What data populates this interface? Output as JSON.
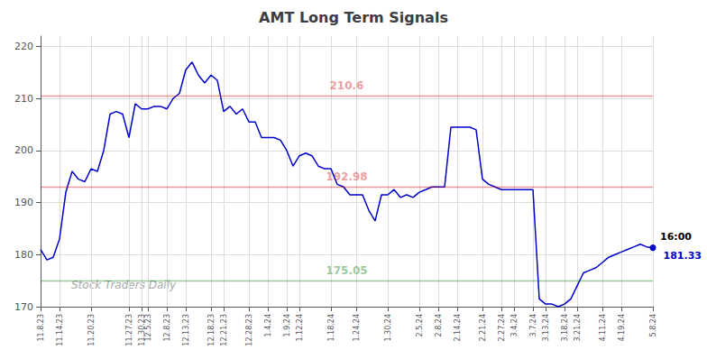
{
  "chart_data": {
    "type": "line",
    "title": "AMT Long Term Signals",
    "categories": [
      "11.8.23",
      null,
      null,
      "11.14.23",
      null,
      null,
      null,
      null,
      "11.20.23",
      null,
      null,
      null,
      null,
      null,
      "11.27.23",
      null,
      "11.30.23",
      "12.5.23",
      null,
      null,
      "12.8.23",
      null,
      null,
      "12.13.23",
      null,
      null,
      null,
      "12.18.23",
      null,
      "12.21.23",
      null,
      null,
      null,
      "12.28.23",
      null,
      null,
      "1.4.24",
      null,
      null,
      "1.9.24",
      null,
      "1.12.24",
      null,
      null,
      null,
      null,
      "1.18.24",
      null,
      null,
      null,
      "1.24.24",
      null,
      null,
      null,
      null,
      "1.30.24",
      null,
      null,
      null,
      null,
      "2.5.24",
      null,
      null,
      "2.8.24",
      null,
      null,
      "2.14.24",
      null,
      null,
      null,
      "2.21.24",
      null,
      null,
      "2.27.24",
      null,
      "3.4.24",
      null,
      null,
      "3.7.24",
      null,
      "3.13.24",
      null,
      null,
      "3.18.24",
      null,
      "3.21.24",
      null,
      null,
      null,
      "4.11.24",
      null,
      null,
      "4.19.24",
      null,
      null,
      null,
      null,
      "5.8.24"
    ],
    "values": [
      181.0,
      179.0,
      179.5,
      183.0,
      192.0,
      196.0,
      194.5,
      194.0,
      196.5,
      196.0,
      200.0,
      207.0,
      207.5,
      207.0,
      202.5,
      209.0,
      208.0,
      208.0,
      208.5,
      208.5,
      208.0,
      210.0,
      211.0,
      215.5,
      217.0,
      214.5,
      213.0,
      214.5,
      213.5,
      207.5,
      208.5,
      207.0,
      208.0,
      205.5,
      205.5,
      202.5,
      202.5,
      202.5,
      202.0,
      200.0,
      197.0,
      199.0,
      199.5,
      199.0,
      197.0,
      196.5,
      196.5,
      193.5,
      193.0,
      191.5,
      191.5,
      191.5,
      188.5,
      186.5,
      191.5,
      191.5,
      192.5,
      191.0,
      191.5,
      191.0,
      192.0,
      192.5,
      193.0,
      193.0,
      193.0,
      204.5,
      204.5,
      204.5,
      204.5,
      204.0,
      194.5,
      193.5,
      193.0,
      192.5,
      192.5,
      192.5,
      192.5,
      192.5,
      192.5,
      171.5,
      170.5,
      170.5,
      170.0,
      170.5,
      171.5,
      174.0,
      176.5,
      177.0,
      177.5,
      178.5,
      179.5,
      180.0,
      180.5,
      181.0,
      181.5,
      182.0,
      181.5,
      181.33
    ],
    "color": "#0000cc",
    "ylim": [
      170,
      222
    ],
    "yticks": [
      170,
      180,
      190,
      200,
      210,
      220
    ],
    "grid": true,
    "hlines": [
      {
        "value": 210.6,
        "label": "210.6",
        "color": "#cc0000"
      },
      {
        "value": 192.98,
        "label": "192.98",
        "color": "#cc0000"
      },
      {
        "value": 175.05,
        "label": "175.05",
        "color": "#007700"
      }
    ],
    "end_annotation": {
      "time": "16:00",
      "price": "181.33"
    },
    "watermark": "Stock Traders Daily"
  }
}
